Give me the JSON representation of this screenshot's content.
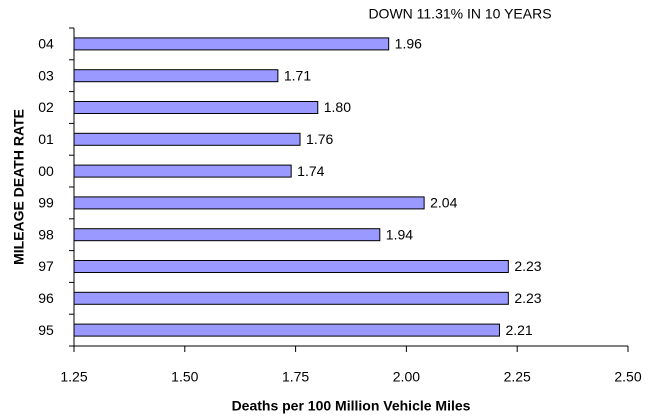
{
  "chart_data": {
    "type": "hbar",
    "title": "DOWN 11.31% IN 10 YEARS",
    "x_label": "Deaths per 100 Million Vehicle Miles",
    "y_label": "MILEAGE DEATH RATE",
    "categories": [
      "04",
      "03",
      "02",
      "01",
      "00",
      "99",
      "98",
      "97",
      "96",
      "95"
    ],
    "values": [
      1.96,
      1.71,
      1.8,
      1.76,
      1.74,
      2.04,
      1.94,
      2.23,
      2.23,
      2.21
    ],
    "value_labels": [
      "1.96",
      "1.71",
      "1.80",
      "1.76",
      "1.74",
      "2.04",
      "1.94",
      "2.23",
      "2.23",
      "2.21"
    ],
    "color": "#9999ff",
    "xlim": [
      1.25,
      2.5
    ],
    "xticks": [
      1.25,
      {
        "value": 1.5,
        "label": "1.50"
      },
      1.75,
      {
        "value": 2.0,
        "label": "2.00"
      },
      2.25,
      {
        "value": 2.5,
        "label": "2.50"
      }
    ]
  }
}
